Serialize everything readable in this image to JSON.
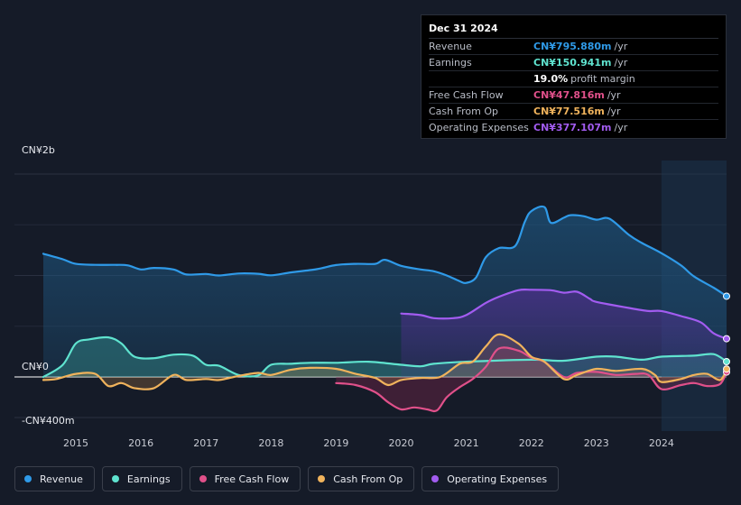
{
  "tooltip": {
    "date": "Dec 31 2024",
    "rows": [
      {
        "label": "Revenue",
        "value": "CN¥795.880m",
        "unit": "/yr",
        "color": "#2f9ae8"
      },
      {
        "label": "Earnings",
        "value": "CN¥150.941m",
        "unit": "/yr",
        "color": "#5fe3cf"
      },
      {
        "label": "",
        "value": "19.0%",
        "unit": "profit margin",
        "color": "#ffffff"
      },
      {
        "label": "Free Cash Flow",
        "value": "CN¥47.816m",
        "unit": "/yr",
        "color": "#e0508a"
      },
      {
        "label": "Cash From Op",
        "value": "CN¥77.516m",
        "unit": "/yr",
        "color": "#f0b35c"
      },
      {
        "label": "Operating Expenses",
        "value": "CN¥377.107m",
        "unit": "/yr",
        "color": "#a25cf0"
      }
    ]
  },
  "legend": [
    {
      "label": "Revenue",
      "color": "#2f9ae8"
    },
    {
      "label": "Earnings",
      "color": "#5fe3cf"
    },
    {
      "label": "Free Cash Flow",
      "color": "#e0508a"
    },
    {
      "label": "Cash From Op",
      "color": "#f0b35c"
    },
    {
      "label": "Operating Expenses",
      "color": "#a25cf0"
    }
  ],
  "chart_data": {
    "type": "area",
    "title": "",
    "xlabel": "",
    "ylabel": "",
    "unit": "CN¥ millions",
    "y_top_label": "CN¥2b",
    "y_zero_label": "CN¥0",
    "y_bottom_label": "-CN¥400m",
    "ylim": [
      -400,
      2000
    ],
    "xlim": [
      2014.5,
      2025.0
    ],
    "x_ticks": [
      "2015",
      "2016",
      "2017",
      "2018",
      "2019",
      "2020",
      "2021",
      "2022",
      "2023",
      "2024"
    ],
    "forecast_from": 2024.0,
    "series": [
      {
        "name": "Revenue",
        "color": "#2f9ae8",
        "x": [
          2014.5,
          2014.8,
          2015.0,
          2015.3,
          2015.6,
          2015.8,
          2016.0,
          2016.2,
          2016.5,
          2016.7,
          2017.0,
          2017.2,
          2017.5,
          2017.8,
          2018.0,
          2018.3,
          2018.7,
          2019.0,
          2019.3,
          2019.6,
          2019.75,
          2020.0,
          2020.3,
          2020.5,
          2020.7,
          2020.9,
          2021.0,
          2021.15,
          2021.3,
          2021.5,
          2021.75,
          2021.9,
          2022.0,
          2022.2,
          2022.3,
          2022.5,
          2022.6,
          2022.8,
          2023.0,
          2023.2,
          2023.5,
          2023.7,
          2024.0,
          2024.3,
          2024.5,
          2024.8,
          2025.0
        ],
        "values": [
          1214,
          1160,
          1115,
          1105,
          1105,
          1100,
          1060,
          1075,
          1060,
          1010,
          1015,
          1000,
          1020,
          1017,
          1002,
          1030,
          1062,
          1103,
          1115,
          1115,
          1155,
          1095,
          1060,
          1042,
          1000,
          943,
          927,
          980,
          1180,
          1270,
          1290,
          1530,
          1635,
          1675,
          1520,
          1570,
          1595,
          1585,
          1550,
          1560,
          1400,
          1320,
          1220,
          1100,
          990,
          880,
          796
        ]
      },
      {
        "name": "Earnings",
        "color": "#5fe3cf",
        "x": [
          2014.5,
          2014.8,
          2015.0,
          2015.2,
          2015.5,
          2015.7,
          2015.9,
          2016.2,
          2016.5,
          2016.8,
          2017.0,
          2017.2,
          2017.5,
          2017.8,
          2018.0,
          2018.3,
          2018.6,
          2019.0,
          2019.5,
          2020.0,
          2020.3,
          2020.5,
          2021.0,
          2022.0,
          2022.5,
          2023.0,
          2023.3,
          2023.7,
          2024.0,
          2024.5,
          2024.8,
          2025.0
        ],
        "values": [
          0,
          120,
          330,
          370,
          390,
          330,
          200,
          185,
          220,
          210,
          120,
          110,
          20,
          15,
          120,
          130,
          140,
          140,
          150,
          120,
          105,
          130,
          150,
          170,
          160,
          200,
          200,
          170,
          200,
          210,
          225,
          151
        ]
      },
      {
        "name": "Free Cash Flow",
        "color": "#e0508a",
        "x": [
          2019.0,
          2019.3,
          2019.6,
          2019.8,
          2020.0,
          2020.2,
          2020.4,
          2020.55,
          2020.7,
          2020.9,
          2021.1,
          2021.3,
          2021.5,
          2021.8,
          2022.0,
          2022.2,
          2022.5,
          2022.7,
          2023.0,
          2023.3,
          2023.6,
          2023.8,
          2024.0,
          2024.3,
          2024.5,
          2024.7,
          2024.9,
          2025.0
        ],
        "values": [
          -60,
          -80,
          -150,
          -250,
          -320,
          -300,
          -320,
          -330,
          -200,
          -100,
          -20,
          100,
          280,
          260,
          190,
          150,
          0,
          40,
          50,
          20,
          30,
          20,
          -120,
          -80,
          -60,
          -90,
          -70,
          48
        ]
      },
      {
        "name": "Cash From Op",
        "color": "#f0b35c",
        "x": [
          2014.5,
          2014.7,
          2015.0,
          2015.3,
          2015.5,
          2015.7,
          2015.9,
          2016.2,
          2016.5,
          2016.7,
          2017.0,
          2017.2,
          2017.5,
          2017.8,
          2018.0,
          2018.3,
          2018.6,
          2019.0,
          2019.3,
          2019.6,
          2019.8,
          2020.0,
          2020.3,
          2020.6,
          2020.9,
          2021.1,
          2021.3,
          2021.5,
          2021.8,
          2022.0,
          2022.2,
          2022.5,
          2022.7,
          2023.0,
          2023.3,
          2023.7,
          2023.9,
          2024.0,
          2024.3,
          2024.5,
          2024.7,
          2024.9,
          2025.0
        ],
        "values": [
          -30,
          -20,
          30,
          30,
          -90,
          -60,
          -110,
          -110,
          20,
          -30,
          -20,
          -30,
          10,
          40,
          20,
          70,
          90,
          80,
          30,
          -10,
          -80,
          -30,
          -10,
          0,
          130,
          150,
          300,
          420,
          330,
          200,
          150,
          -20,
          20,
          80,
          60,
          80,
          20,
          -50,
          -20,
          20,
          30,
          -30,
          78
        ]
      },
      {
        "name": "Operating Expenses",
        "color": "#a25cf0",
        "x": [
          2020.0,
          2020.3,
          2020.5,
          2020.8,
          2021.0,
          2021.3,
          2021.5,
          2021.8,
          2022.0,
          2022.3,
          2022.5,
          2022.7,
          2022.9,
          2023.0,
          2023.5,
          2023.8,
          2024.0,
          2024.3,
          2024.6,
          2024.8,
          2025.0
        ],
        "values": [
          625,
          610,
          580,
          580,
          610,
          730,
          790,
          855,
          860,
          855,
          830,
          840,
          770,
          740,
          680,
          650,
          650,
          600,
          540,
          430,
          377
        ]
      }
    ]
  }
}
